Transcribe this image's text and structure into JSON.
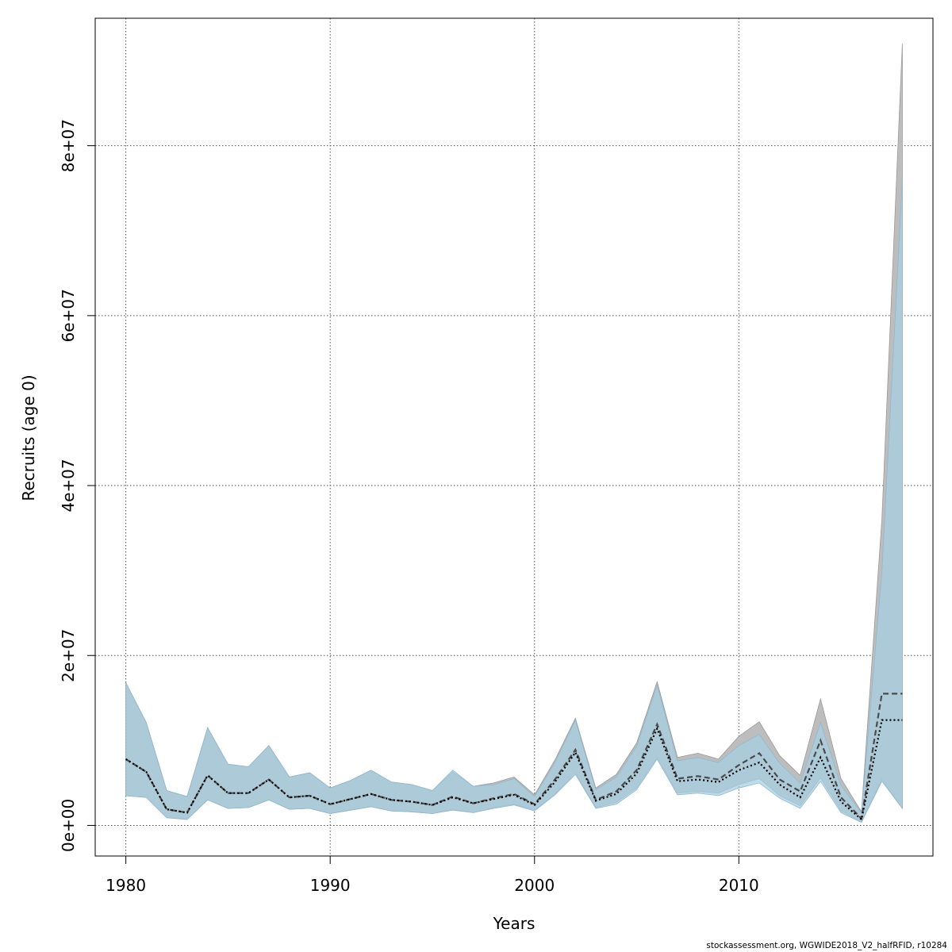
{
  "footer": "stockassessment.org, WGWIDE2018_V2_halfRFID, r10284",
  "chart_data": {
    "type": "area",
    "xlabel": "Years",
    "ylabel": "Recruits (age 0)",
    "xlim": [
      1978.5,
      2019.5
    ],
    "ylim": [
      -3600000,
      95000000
    ],
    "xticks": [
      1980,
      1990,
      2000,
      2010
    ],
    "yticks": [
      0,
      20000000,
      40000000,
      60000000,
      80000000
    ],
    "ytick_labels": [
      "0e+00",
      "2e+07",
      "4e+07",
      "6e+07",
      "8e+07"
    ],
    "grid": true,
    "colors": {
      "grey_band": "#bdbdbd",
      "blue_band": "#a6cee3",
      "overlap": "#a4c2d3",
      "line": "#000000"
    },
    "x": [
      1980,
      1981,
      1982,
      1983,
      1984,
      1985,
      1986,
      1987,
      1988,
      1989,
      1990,
      1991,
      1992,
      1993,
      1994,
      1995,
      1996,
      1997,
      1998,
      1999,
      2000,
      2001,
      2002,
      2003,
      2004,
      2005,
      2006,
      2007,
      2008,
      2009,
      2010,
      2011,
      2012,
      2013,
      2014,
      2015,
      2016,
      2017,
      2018
    ],
    "series": [
      {
        "role": "reference",
        "style": "dashed",
        "estimate": [
          7800000,
          6300000,
          1900000,
          1500000,
          5900000,
          3800000,
          3800000,
          5400000,
          3300000,
          3500000,
          2500000,
          3100000,
          3700000,
          3000000,
          2800000,
          2400000,
          3400000,
          2600000,
          3200000,
          3700000,
          2500000,
          5400000,
          8900000,
          3000000,
          4000000,
          6500000,
          11900000,
          5500000,
          5800000,
          5400000,
          7100000,
          8500000,
          5400000,
          4000000,
          10000000,
          3300000,
          800000,
          15500000,
          15500000
        ],
        "lower": [
          3500000,
          3300000,
          900000,
          700000,
          3000000,
          2000000,
          2100000,
          3000000,
          1900000,
          2000000,
          1400000,
          1800000,
          2200000,
          1700000,
          1600000,
          1400000,
          1900000,
          1500000,
          2100000,
          2500000,
          1800000,
          3700000,
          6200000,
          2100000,
          2700000,
          4400000,
          8000000,
          3800000,
          4000000,
          3800000,
          4800000,
          5500000,
          3500000,
          2300000,
          5600000,
          1700000,
          400000,
          5400000,
          2000000
        ],
        "upper": [
          16800000,
          12100000,
          4100000,
          3400000,
          11500000,
          7200000,
          6900000,
          9400000,
          5700000,
          6200000,
          4400000,
          5300000,
          6500000,
          5100000,
          4800000,
          4100000,
          6300000,
          4600000,
          5000000,
          5700000,
          3600000,
          7700000,
          12600000,
          4400000,
          6000000,
          9700000,
          16900000,
          8000000,
          8500000,
          7800000,
          10500000,
          12200000,
          8200000,
          5900000,
          14900000,
          5500000,
          1600000,
          36000000,
          92000000
        ]
      },
      {
        "role": "current",
        "style": "dotted",
        "estimate": [
          7800000,
          6300000,
          1900000,
          1500000,
          5900000,
          3800000,
          3800000,
          5400000,
          3300000,
          3500000,
          2500000,
          3100000,
          3700000,
          3000000,
          2800000,
          2400000,
          3300000,
          2600000,
          3100000,
          3600000,
          2400000,
          5100000,
          8600000,
          2900000,
          3700000,
          6100000,
          11400000,
          5200000,
          5400000,
          5100000,
          6500000,
          7400000,
          4800000,
          3300000,
          8000000,
          2800000,
          700000,
          12400000,
          12400000
        ],
        "lower": [
          3500000,
          3300000,
          900000,
          700000,
          3000000,
          2000000,
          2100000,
          3000000,
          1900000,
          2000000,
          1400000,
          1800000,
          2200000,
          1700000,
          1600000,
          1400000,
          1800000,
          1500000,
          2000000,
          2400000,
          1700000,
          3600000,
          6000000,
          2000000,
          2500000,
          4200000,
          7800000,
          3600000,
          3800000,
          3500000,
          4400000,
          5000000,
          3200000,
          2000000,
          5200000,
          1500000,
          350000,
          5200000,
          2000000
        ],
        "upper": [
          16800000,
          12100000,
          4100000,
          3400000,
          11500000,
          7200000,
          6900000,
          9400000,
          5700000,
          6200000,
          4400000,
          5300000,
          6500000,
          5100000,
          4800000,
          4100000,
          6500000,
          4600000,
          4800000,
          5500000,
          3400000,
          7400000,
          12400000,
          4200000,
          5700000,
          9300000,
          16500000,
          7600000,
          8000000,
          7400000,
          9400000,
          10700000,
          7300000,
          5000000,
          12100000,
          4700000,
          1500000,
          29800000,
          76000000
        ]
      }
    ]
  }
}
